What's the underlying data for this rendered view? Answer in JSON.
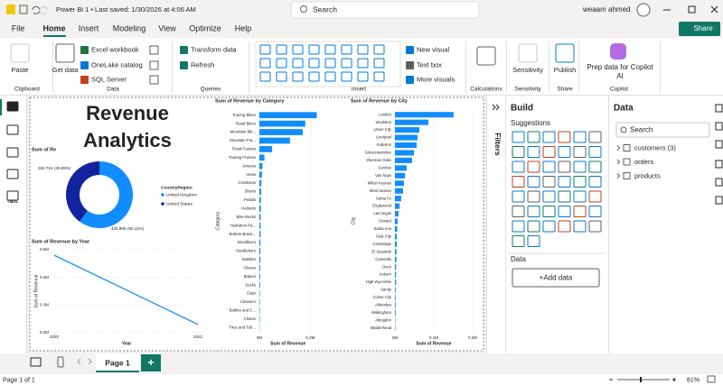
{
  "title_bar": {
    "document": "Power Bi 1 • Last saved: 1/30/2026 at 4:06 AM",
    "search": "Search",
    "user": "weaam ahmed"
  },
  "menu": {
    "tabs": [
      "File",
      "Home",
      "Insert",
      "Modeling",
      "View",
      "Optimize",
      "Help"
    ],
    "share": "Share"
  },
  "ribbon": {
    "groups": [
      {
        "label": "Clipboard",
        "buttons": [
          "Paste"
        ]
      },
      {
        "label": "Data",
        "buttons": [
          "Get data",
          "Excel workbook",
          "OneLake catalog",
          "SQL Server"
        ]
      },
      {
        "label": "Queries",
        "buttons": [
          "Transform data",
          "Refresh"
        ]
      },
      {
        "label": "Insert",
        "buttons": [
          "New visual",
          "Text box",
          "More visuals"
        ]
      },
      {
        "label": "Calculations"
      },
      {
        "label": "Sensitivity",
        "buttons": [
          "Sensitivity"
        ]
      },
      {
        "label": "Share",
        "buttons": [
          "Publish"
        ]
      },
      {
        "label": "Copilot",
        "buttons": [
          "Prep data for Copilot AI"
        ]
      }
    ]
  },
  "left_nav": {
    "tmdl": "TMDL"
  },
  "canvas": {
    "title": "Revenue Analytics",
    "donut": {
      "type": "donut",
      "title": "Sum of Re",
      "legend_title": "CountryRegion",
      "categories": [
        "United Kingdom",
        "United States"
      ],
      "values": [
        425.98,
        282.71
      ],
      "value_labels": [
        "425.98K (60.11%)",
        "282.71K (39.89%)"
      ],
      "colors": [
        "#118dff",
        "#12239e"
      ]
    },
    "line": {
      "type": "line",
      "title": "Sum of Revenue by Year",
      "x_label": "Year",
      "y_label": "Sum of Revenue",
      "x": [
        2020,
        2021
      ],
      "values": [
        0.48,
        0.23
      ],
      "color": "#118dff",
      "xlim": [
        2020,
        2021
      ],
      "xticks": [
        2020,
        2021
      ],
      "ylim": [
        0.2,
        0.5
      ],
      "yticks": [
        {
          "value": 0.2,
          "label": "0.2M"
        },
        {
          "value": 0.3,
          "label": "0.3M"
        },
        {
          "value": 0.4,
          "label": "0.4M"
        },
        {
          "value": 0.5,
          "label": "0.5M"
        }
      ]
    },
    "category_bar": {
      "type": "bar",
      "orientation": "horizontal",
      "title": "Sum of Revenue by Category",
      "x_label": "Sum of Revenue",
      "y_label": "Category",
      "categories": [
        "Touring Bikes",
        "Road Bikes",
        "Mountain Bik...",
        "Mountain Fra...",
        "Road Frames",
        "Touring Frames",
        "Jerseys",
        "Vests",
        "Cranksets",
        "Shorts",
        "Pedals",
        "Helmets",
        "Bike Racks",
        "Hydration Pa...",
        "Bottom Brack...",
        "Derailleurs",
        "Handlebars",
        "Saddles",
        "Gloves",
        "Brakes",
        "Socks",
        "Caps",
        "Cleaners",
        "Bottles and C...",
        "Chains",
        "Tires and Tub..."
      ],
      "values": [
        0.225,
        0.18,
        0.17,
        0.12,
        0.05,
        0.02,
        0.012,
        0.01,
        0.008,
        0.007,
        0.006,
        0.006,
        0.005,
        0.005,
        0.005,
        0.004,
        0.004,
        0.004,
        0.003,
        0.003,
        0.003,
        0.002,
        0.002,
        0.002,
        0.002,
        0.001
      ],
      "color": "#118dff",
      "xlim": [
        0,
        0.225
      ],
      "xticks": [
        {
          "value": 0,
          "label": "0M"
        },
        {
          "value": 0.2,
          "label": "0.2M"
        }
      ]
    },
    "city_bar": {
      "type": "bar",
      "orientation": "horizontal",
      "title": "Sum of Revenue by City",
      "x_label": "Sum of Revenue",
      "y_label": "City",
      "categories": [
        "London",
        "Woolston",
        "Union City",
        "Liverpool",
        "Fullerton",
        "Gloucestershire",
        "Sherman Oaks",
        "Cerritos",
        "Van Nuys",
        "Milton Keynes",
        "West Sussex",
        "Santa Fe",
        "Englewood",
        "Las Vegas",
        "Oxnard",
        "Santa Ana",
        "Daly City",
        "Cambridge",
        "El Segundo",
        "Camarillo",
        "Oxon",
        "Auburn",
        "High Wycombe",
        "Sandy",
        "Culver City",
        "Alhambra",
        "Wokingham",
        "Abingdon",
        "Maidenhead"
      ],
      "values": [
        0.151,
        0.086,
        0.063,
        0.058,
        0.056,
        0.049,
        0.044,
        0.03,
        0.026,
        0.023,
        0.021,
        0.016,
        0.012,
        0.009,
        0.007,
        0.006,
        0.005,
        0.005,
        0.004,
        0.004,
        0.003,
        0.003,
        0.003,
        0.002,
        0.002,
        0.002,
        0.002,
        0.001,
        0.001
      ],
      "color": "#118dff",
      "xlim": [
        0,
        0.2
      ],
      "xticks": [
        {
          "value": 0,
          "label": "0M"
        },
        {
          "value": 0.1,
          "label": "0.1M"
        },
        {
          "value": 0.2,
          "label": "0.2M"
        }
      ]
    }
  },
  "filters": "Filters",
  "build": {
    "title": "Build",
    "suggestions": "Suggestions",
    "data_section": "Data",
    "add_data": "+Add data"
  },
  "data_pane": {
    "title": "Data",
    "search": "Search",
    "tables": [
      "customers (3)",
      "orders",
      "products"
    ]
  },
  "pages": {
    "tabs": [
      "Page 1"
    ],
    "add": "+"
  },
  "status": {
    "page": "Page 1 of 1",
    "zoom": "61%"
  }
}
